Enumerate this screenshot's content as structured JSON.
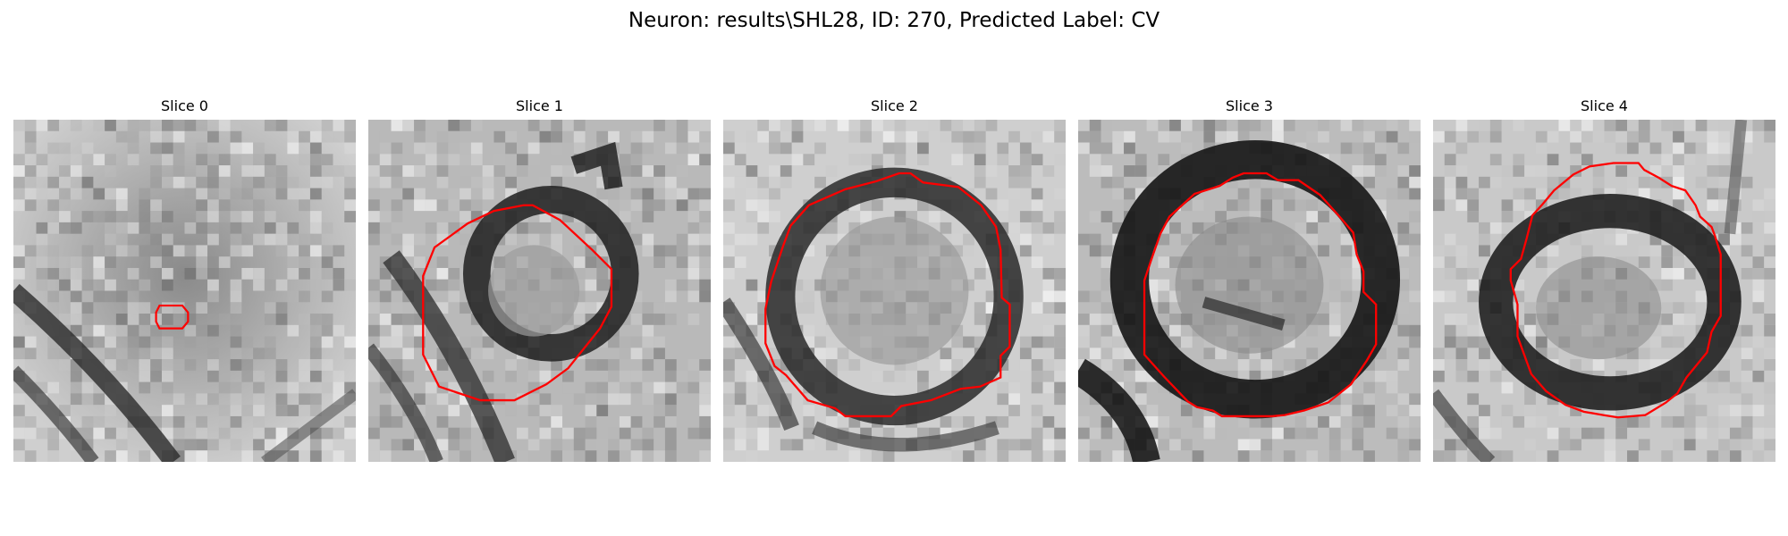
{
  "title": "Neuron: results\\SHL28, ID: 270, Predicted Label: CV",
  "colors": {
    "contour": "#ff0000",
    "background": "#ffffff"
  },
  "panels": [
    {
      "title": "Slice 0",
      "image": "grayscale-em-microscopy-slice",
      "contour": "small-red-outline"
    },
    {
      "title": "Slice 1",
      "image": "grayscale-em-microscopy-slice",
      "contour": "red-polygon-outline"
    },
    {
      "title": "Slice 2",
      "image": "grayscale-em-microscopy-slice",
      "contour": "red-polygon-outline"
    },
    {
      "title": "Slice 3",
      "image": "grayscale-em-microscopy-slice",
      "contour": "red-polygon-outline"
    },
    {
      "title": "Slice 4",
      "image": "grayscale-em-microscopy-slice",
      "contour": "red-polygon-outline"
    }
  ]
}
